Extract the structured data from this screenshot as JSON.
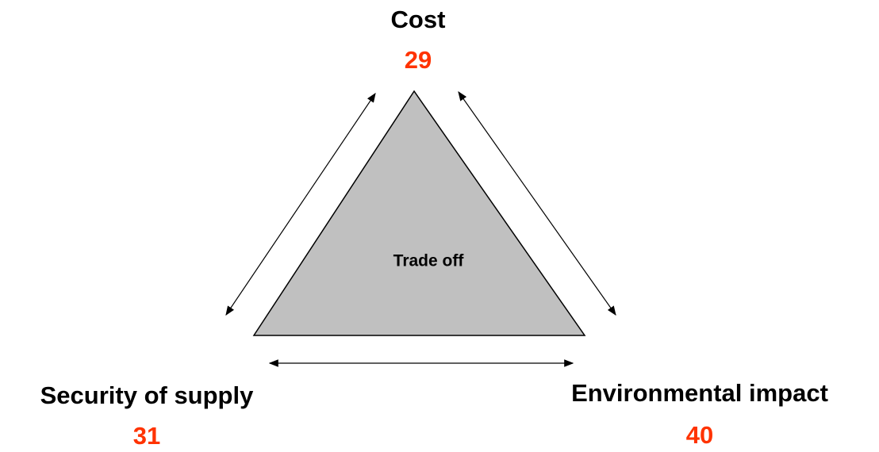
{
  "center": {
    "label": "Trade off"
  },
  "nodes": [
    {
      "label": "Cost",
      "value": 29
    },
    {
      "label": "Security of supply",
      "value": 31
    },
    {
      "label": "Environmental impact",
      "value": 40
    }
  ]
}
